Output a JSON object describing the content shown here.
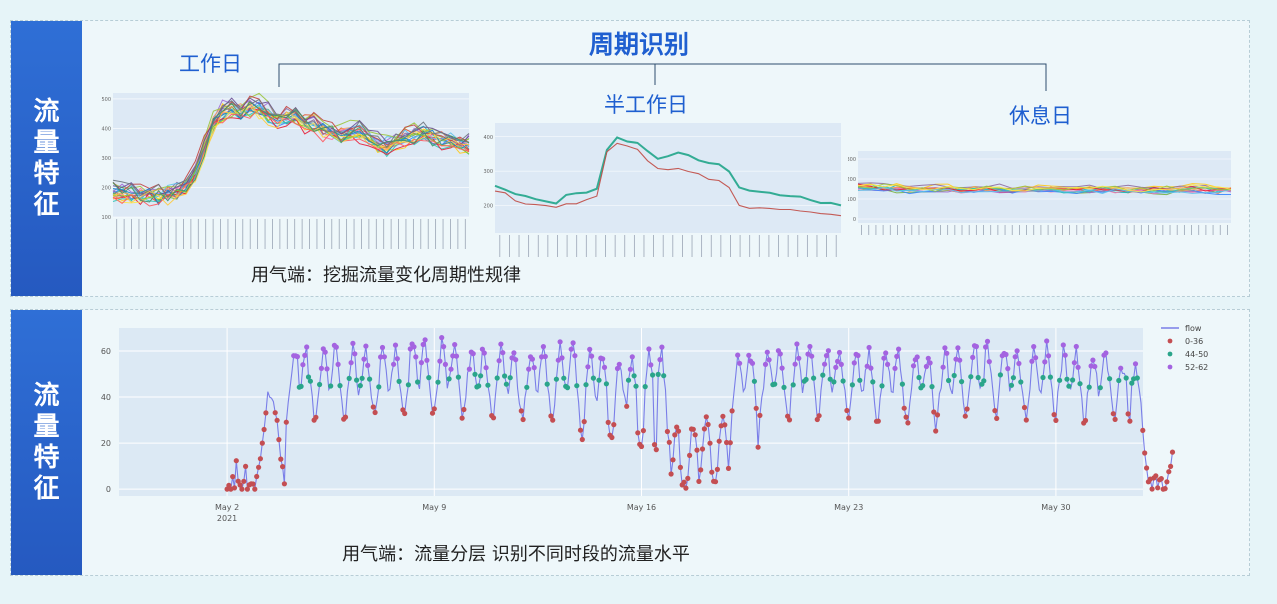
{
  "section1": {
    "side_label": [
      "流",
      "量",
      "特",
      "征"
    ],
    "title": "周期识别",
    "workday_label": "工作日",
    "halfday_label": "半工作日",
    "restday_label": "休息日",
    "caption": "用气端：挖掘流量变化周期性规律"
  },
  "section2": {
    "side_label": [
      "流",
      "量",
      "特",
      "征"
    ],
    "caption": "用气端：流量分层 识别不同时段的流量水平"
  },
  "colors": {
    "side_bg": "#2b63cc",
    "title": "#1f5fd0",
    "plot_bg": "#dce9f4",
    "flow_line": "#7a7ee8",
    "low": "#c44e52",
    "mid": "#2aa58a",
    "high": "#a463e0"
  },
  "chart_data": [
    {
      "type": "line",
      "id": "workday",
      "y_ticks": [
        "500",
        "400",
        "300",
        "200",
        "100"
      ],
      "ylim": [
        100,
        520
      ],
      "series_count": 22,
      "profile": [
        190,
        185,
        180,
        182,
        178,
        176,
        180,
        188,
        205,
        250,
        330,
        420,
        460,
        470,
        455,
        480,
        470,
        450,
        430,
        440,
        445,
        420,
        415,
        400,
        390,
        375,
        390,
        395,
        370,
        350,
        345,
        360,
        370,
        380,
        385,
        375,
        365,
        360,
        350,
        345
      ]
    },
    {
      "type": "line",
      "id": "halfday",
      "y_ticks": [
        "400",
        "300",
        "200"
      ],
      "ylim": [
        120,
        440
      ],
      "series": [
        {
          "values": [
            260,
            250,
            230,
            225,
            220,
            215,
            210,
            230,
            235,
            240,
            250,
            360,
            395,
            390,
            380,
            360,
            340,
            345,
            350,
            345,
            330,
            325,
            320,
            300,
            250,
            240,
            238,
            235,
            232,
            230,
            225,
            220,
            210,
            205,
            200
          ]
        },
        {
          "values": [
            245,
            235,
            215,
            205,
            200,
            198,
            195,
            205,
            208,
            215,
            230,
            360,
            380,
            375,
            360,
            330,
            310,
            300,
            305,
            300,
            290,
            280,
            275,
            250,
            200,
            195,
            195,
            190,
            188,
            186,
            180,
            178,
            175,
            172,
            170
          ]
        }
      ]
    },
    {
      "type": "line",
      "id": "restday",
      "y_ticks": [
        "300",
        "200",
        "100",
        "0"
      ],
      "ylim": [
        -20,
        340
      ],
      "series_count": 14,
      "profile": [
        165,
        160,
        158,
        156,
        154,
        152,
        150,
        150,
        148,
        150,
        152,
        150,
        148,
        150,
        152,
        150,
        148,
        150,
        152,
        150,
        150,
        150,
        148,
        146,
        148,
        150,
        152,
        150,
        148,
        146
      ]
    },
    {
      "type": "scatter",
      "id": "layered-flow",
      "x_ticks": [
        "May 2",
        "May 9",
        "May 16",
        "May 23",
        "May 30"
      ],
      "x_year": "2021",
      "y_ticks": [
        "60",
        "40",
        "20",
        "0"
      ],
      "ylim": [
        -3,
        70
      ],
      "legend": [
        {
          "name": "flow",
          "kind": "line"
        },
        {
          "name": "0-36",
          "kind": "point"
        },
        {
          "name": "44-50",
          "kind": "point"
        },
        {
          "name": "52-62",
          "kind": "point"
        }
      ],
      "legend_position": "top-right",
      "daily_levels": [
        [
          1,
          2,
          1,
          3,
          2,
          10,
          3,
          2
        ],
        [
          5,
          8,
          12,
          20,
          28,
          35,
          40,
          42
        ],
        [
          32,
          38,
          44,
          50,
          60,
          58,
          55,
          45
        ],
        [
          33,
          40,
          46,
          52,
          62,
          60,
          52,
          44
        ],
        [
          34,
          42,
          48,
          55,
          62,
          58,
          50,
          43
        ],
        [
          35,
          41,
          47,
          55,
          60,
          57,
          49,
          42
        ],
        [
          34,
          42,
          48,
          58,
          66,
          64,
          55,
          46
        ],
        [
          33,
          42,
          47,
          56,
          64,
          60,
          52,
          45
        ],
        [
          34,
          42,
          48,
          55,
          60,
          58,
          50,
          44
        ],
        [
          33,
          40,
          46,
          54,
          60,
          58,
          50,
          44
        ],
        [
          30,
          40,
          47,
          55,
          60,
          57,
          50,
          44
        ],
        [
          28,
          38,
          46,
          55,
          62,
          58,
          50,
          42
        ],
        [
          22,
          30,
          45,
          52,
          58,
          56,
          48,
          40
        ],
        [
          20,
          26,
          44,
          50,
          56,
          54,
          46,
          38
        ],
        [
          18,
          28,
          46,
          52,
          60,
          55,
          48,
          20
        ],
        [
          5,
          15,
          22,
          28,
          25,
          12,
          4,
          2
        ],
        [
          8,
          20,
          28,
          30,
          26,
          20,
          6,
          3
        ],
        [
          20,
          35,
          45,
          52,
          58,
          56,
          48,
          42
        ],
        [
          30,
          40,
          46,
          55,
          60,
          58,
          50,
          44
        ],
        [
          32,
          42,
          48,
          56,
          62,
          58,
          50,
          44
        ],
        [
          33,
          42,
          48,
          55,
          60,
          58,
          50,
          44
        ],
        [
          32,
          40,
          46,
          55,
          60,
          56,
          49,
          43
        ],
        [
          30,
          38,
          46,
          54,
          60,
          56,
          50,
          44
        ],
        [
          28,
          36,
          46,
          52,
          58,
          56,
          50,
          42
        ],
        [
          30,
          40,
          46,
          54,
          60,
          58,
          50,
          44
        ],
        [
          32,
          42,
          48,
          56,
          62,
          60,
          50,
          44
        ],
        [
          33,
          42,
          48,
          55,
          60,
          58,
          50,
          44
        ],
        [
          32,
          40,
          46,
          55,
          62,
          58,
          48,
          44
        ],
        [
          30,
          40,
          46,
          54,
          60,
          56,
          50,
          44
        ],
        [
          30,
          40,
          45,
          52,
          58,
          56,
          49,
          43
        ],
        [
          28,
          38,
          45,
          50,
          52,
          50,
          48,
          30
        ],
        [
          15,
          10,
          5,
          3,
          2,
          2,
          3,
          2
        ]
      ]
    }
  ]
}
